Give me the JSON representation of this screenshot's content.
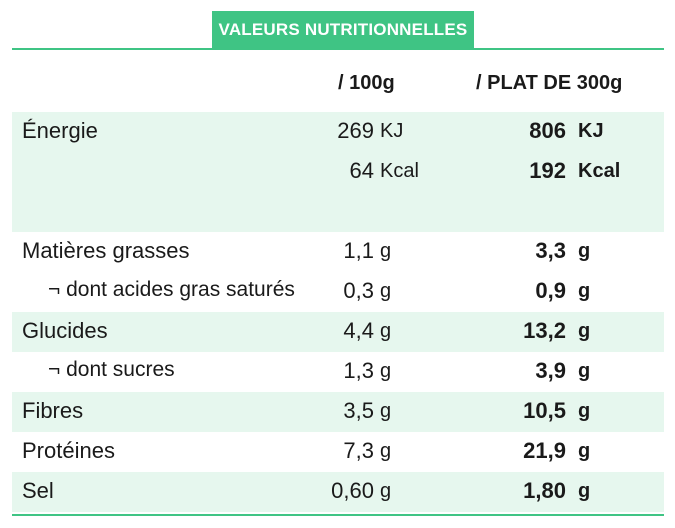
{
  "header": {
    "title": "VALEURS NUTRITIONNELLES",
    "col_100g": "/ 100g",
    "col_plat": "/ PLAT DE 300g"
  },
  "colors": {
    "accent": "#3fc484",
    "row_shade": "#e6f7ee"
  },
  "rows": [
    {
      "label": "Énergie",
      "v100": "269",
      "u100": "KJ",
      "vplat": "806",
      "uplat": "KJ"
    },
    {
      "label": "",
      "v100": "64",
      "u100": "Kcal",
      "vplat": "192",
      "uplat": "Kcal"
    },
    {
      "label": "",
      "v100": "",
      "u100": "",
      "vplat": "",
      "uplat": ""
    },
    {
      "label": "Matières grasses",
      "v100": "1,1",
      "u100": "g",
      "vplat": "3,3",
      "uplat": "g"
    },
    {
      "label": "¬ dont acides gras saturés",
      "v100": "0,3",
      "u100": "g",
      "vplat": "0,9",
      "uplat": "g"
    },
    {
      "label": "Glucides",
      "v100": "4,4",
      "u100": "g",
      "vplat": "13,2",
      "uplat": "g"
    },
    {
      "label": "¬ dont sucres",
      "v100": "1,3",
      "u100": "g",
      "vplat": "3,9",
      "uplat": "g"
    },
    {
      "label": "Fibres",
      "v100": "3,5",
      "u100": "g",
      "vplat": "10,5",
      "uplat": "g"
    },
    {
      "label": "Protéines",
      "v100": "7,3",
      "u100": "g",
      "vplat": "21,9",
      "uplat": "g"
    },
    {
      "label": "Sel",
      "v100": "0,60",
      "u100": "g",
      "vplat": "1,80",
      "uplat": "g"
    }
  ]
}
